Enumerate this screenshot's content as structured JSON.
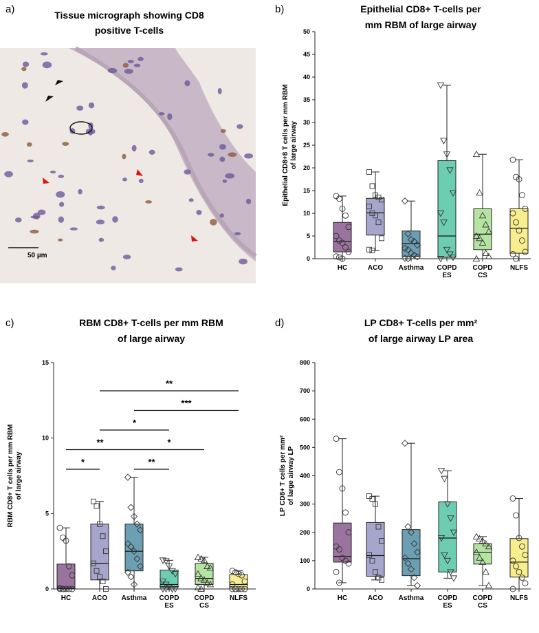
{
  "micrograph": {
    "panel_label": "a)",
    "title": [
      "Tissue micrograph showing CD8",
      "positive T-cells"
    ],
    "scale_bar": "50 µm"
  },
  "chart_data": [
    {
      "type": "box",
      "panel_label": "b)",
      "title": [
        "Epithelial CD8+ T-cells per",
        "mm RBM  of large airway"
      ],
      "ylabel": [
        "Epithelial CD8+8 T cells per mm RBM",
        "of large airway"
      ],
      "categories": [
        [
          "HC"
        ],
        [
          "ACO"
        ],
        [
          "Asthma"
        ],
        [
          "COPD",
          "ES"
        ],
        [
          "COPD",
          "CS"
        ],
        [
          "NLFS"
        ]
      ],
      "colors": [
        "#9b739f",
        "#a6a5cb",
        "#6d9fb3",
        "#6ccdb3",
        "#b5e3a2",
        "#f8ee8e"
      ],
      "markers": [
        "circle",
        "square",
        "diamond",
        "triangle-down",
        "triangle-up",
        "circle"
      ],
      "ylim": [
        0,
        50
      ],
      "yticks": [
        0,
        5,
        10,
        15,
        20,
        25,
        30,
        35,
        40,
        45,
        50
      ],
      "boxes": [
        {
          "min": 0,
          "q1": 1.5,
          "median": 3.8,
          "q3": 8,
          "max": 13.8,
          "points": [
            13.8,
            13.2,
            11,
            9.5,
            7,
            5,
            4,
            3.5,
            2.5,
            1.5,
            0.5,
            0.3,
            0
          ]
        },
        {
          "min": 1.8,
          "q1": 5.2,
          "median": 10.1,
          "q3": 13.3,
          "max": 19.1,
          "points": [
            19.1,
            16,
            14,
            13.5,
            13,
            11.5,
            10,
            9.5,
            8,
            4.5,
            2,
            1.8
          ]
        },
        {
          "min": 0,
          "q1": 0.5,
          "median": 3.3,
          "q3": 6.1,
          "max": 12.7,
          "points": [
            12.7,
            5.5,
            4.2,
            3.8,
            3,
            2.3,
            2,
            1.2,
            0.8,
            0.4,
            0.1,
            0
          ]
        },
        {
          "min": 0,
          "q1": 0.3,
          "median": 5,
          "q3": 21.6,
          "max": 38.2,
          "points": [
            38.2,
            26,
            23,
            19.5,
            14.5,
            10,
            8,
            2,
            1,
            0.3,
            0
          ]
        },
        {
          "min": 0,
          "q1": 2,
          "median": 5.4,
          "q3": 11,
          "max": 23,
          "points": [
            23,
            14.5,
            9.5,
            7.5,
            6,
            5,
            4.5,
            3.5,
            1.2,
            0.5,
            0
          ]
        },
        {
          "min": 0,
          "q1": 1.2,
          "median": 6.7,
          "q3": 11,
          "max": 21.8,
          "points": [
            21.8,
            18,
            17.5,
            14,
            11,
            10,
            8,
            6.2,
            4,
            1.5,
            1,
            0
          ]
        }
      ]
    },
    {
      "type": "box",
      "panel_label": "c)",
      "title": [
        "RBM CD8+ T-cells per mm RBM",
        "of large airway"
      ],
      "ylabel": [
        "RBM CD8+ T cells per mm RBM",
        "of large airway"
      ],
      "categories": [
        [
          "HC"
        ],
        [
          "ACO"
        ],
        [
          "Asthma"
        ],
        [
          "COPD",
          "ES"
        ],
        [
          "COPD",
          "CS"
        ],
        [
          "NLFS"
        ]
      ],
      "colors": [
        "#9b739f",
        "#a6a5cb",
        "#6d9fb3",
        "#6ccdb3",
        "#b5e3a2",
        "#f8ee8e"
      ],
      "markers": [
        "circle",
        "square",
        "diamond",
        "triangle-down",
        "triangle-up",
        "circle"
      ],
      "ylim": [
        0,
        15
      ],
      "yticks": [
        0,
        5,
        10,
        15
      ],
      "boxes": [
        {
          "min": 0,
          "q1": 0,
          "median": 0.05,
          "q3": 1.65,
          "max": 4.05,
          "points": [
            4.05,
            3.4,
            3.2,
            1.5,
            0.9,
            0.05,
            0,
            0,
            0,
            0,
            0,
            0
          ]
        },
        {
          "min": 0,
          "q1": 0.6,
          "median": 1.7,
          "q3": 4.3,
          "max": 5.8,
          "points": [
            5.8,
            5.5,
            4.3,
            3.5,
            2.5,
            1.7,
            1.2,
            0.8,
            0.5,
            0
          ]
        },
        {
          "min": 0,
          "q1": 1.2,
          "median": 2.5,
          "q3": 4.3,
          "max": 7.4,
          "points": [
            7.4,
            5.4,
            4.8,
            4.3,
            3.9,
            3,
            2.8,
            2.5,
            2,
            1.5,
            1.1,
            0.8,
            0.3
          ]
        },
        {
          "min": 0,
          "q1": 0.1,
          "median": 0.3,
          "q3": 1.25,
          "max": 1.9,
          "points": [
            1.9,
            1.85,
            1.5,
            1.2,
            1,
            0.5,
            0.3,
            0.1,
            0,
            0,
            0,
            0
          ]
        },
        {
          "min": 0,
          "q1": 0.3,
          "median": 0.7,
          "q3": 1.7,
          "max": 2.1,
          "points": [
            2.1,
            2,
            1.9,
            1.5,
            1.4,
            1,
            0.7,
            0.6,
            0.4,
            0.3,
            0.1,
            0
          ]
        },
        {
          "min": 0,
          "q1": 0,
          "median": 0.3,
          "q3": 0.95,
          "max": 1.2,
          "points": [
            1.2,
            1.1,
            1,
            0.9,
            0.5,
            0.3,
            0,
            0,
            0,
            0,
            0,
            0
          ]
        }
      ],
      "comparisons": [
        {
          "between": [
            0,
            1
          ],
          "label": "*"
        },
        {
          "between": [
            2,
            3
          ],
          "label": "**"
        },
        {
          "between": [
            0,
            2
          ],
          "label": "**"
        },
        {
          "between": [
            2,
            4
          ],
          "label": "*"
        },
        {
          "between": [
            1,
            3
          ],
          "label": "*"
        },
        {
          "between": [
            2,
            5
          ],
          "label": "***"
        },
        {
          "between": [
            1,
            5
          ],
          "label": "**"
        }
      ]
    },
    {
      "type": "box",
      "panel_label": "d)",
      "title": [
        "LP CD8+ T-cells per mm²",
        "of large airway LP area"
      ],
      "ylabel": [
        "LP CD8+ T cells per mm²",
        "of large airway LP"
      ],
      "categories": [
        [
          "HC"
        ],
        [
          "ACO"
        ],
        [
          "Asthma"
        ],
        [
          "COPD",
          "ES"
        ],
        [
          "COPD",
          "CS"
        ],
        [
          "NLFS"
        ]
      ],
      "colors": [
        "#9b739f",
        "#a6a5cb",
        "#6d9fb3",
        "#6ccdb3",
        "#b5e3a2",
        "#f8ee8e"
      ],
      "markers": [
        "circle",
        "square",
        "diamond",
        "triangle-down",
        "triangle-up",
        "circle"
      ],
      "ylim": [
        0,
        800
      ],
      "yticks": [
        0,
        100,
        200,
        300,
        400,
        500,
        600,
        700,
        800
      ],
      "boxes": [
        {
          "min": 22,
          "q1": 95,
          "median": 115,
          "q3": 233,
          "max": 531,
          "points": [
            531,
            413,
            355,
            270,
            200,
            150,
            140,
            110,
            100,
            90,
            60,
            22
          ]
        },
        {
          "min": 32,
          "q1": 45,
          "median": 118,
          "q3": 235,
          "max": 328,
          "points": [
            328,
            318,
            300,
            220,
            170,
            120,
            100,
            60,
            40,
            32
          ]
        },
        {
          "min": 12,
          "q1": 47,
          "median": 107,
          "q3": 210,
          "max": 515,
          "points": [
            515,
            220,
            200,
            160,
            130,
            110,
            90,
            70,
            40,
            12
          ]
        },
        {
          "min": 38,
          "q1": 60,
          "median": 180,
          "q3": 308,
          "max": 418,
          "points": [
            418,
            390,
            300,
            250,
            200,
            180,
            120,
            100,
            60,
            38
          ]
        },
        {
          "min": 12,
          "q1": 88,
          "median": 130,
          "q3": 160,
          "max": 185,
          "points": [
            185,
            178,
            170,
            160,
            150,
            130,
            110,
            95,
            60,
            12
          ]
        },
        {
          "min": 0,
          "q1": 42,
          "median": 95,
          "q3": 178,
          "max": 320,
          "points": [
            320,
            260,
            180,
            150,
            120,
            100,
            80,
            60,
            40,
            20,
            0
          ]
        }
      ]
    }
  ]
}
